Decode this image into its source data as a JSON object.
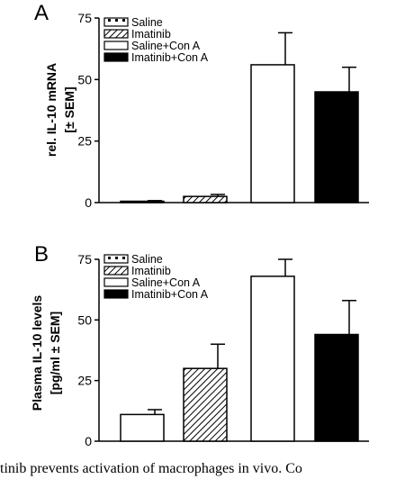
{
  "chart_data": [
    {
      "panel": "A",
      "type": "bar",
      "ylabel_lines": [
        "rel. IL-10 mRNA",
        "[± SEM]"
      ],
      "ylim": [
        0,
        75
      ],
      "yticks": [
        0,
        25,
        50,
        75
      ],
      "series": [
        {
          "name": "Saline",
          "value": 0.5,
          "error": 0.3
        },
        {
          "name": "Imatinib",
          "value": 2.5,
          "error": 0.8
        },
        {
          "name": "Saline+Con A",
          "value": 56,
          "error": 13
        },
        {
          "name": "Imatinib+Con A",
          "value": 45,
          "error": 10
        }
      ],
      "legend_position": "top-left"
    },
    {
      "panel": "B",
      "type": "bar",
      "ylabel_lines": [
        "Plasma IL-10 levels",
        "[pg/ml ± SEM]"
      ],
      "ylim": [
        0,
        75
      ],
      "yticks": [
        0,
        25,
        50,
        75
      ],
      "series": [
        {
          "name": "Saline",
          "value": 11,
          "error": 2
        },
        {
          "name": "Imatinib",
          "value": 30,
          "error": 10
        },
        {
          "name": "Saline+Con A",
          "value": 68,
          "error": 7
        },
        {
          "name": "Imatinib+Con A",
          "value": 44,
          "error": 14
        }
      ],
      "legend_position": "top-left"
    }
  ],
  "caption": "tinib prevents activation of macrophages in vivo. Co"
}
